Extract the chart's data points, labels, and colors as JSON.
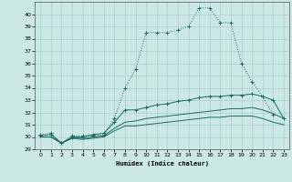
{
  "title": "",
  "xlabel": "Humidex (Indice chaleur)",
  "bg_color": "#cce8e4",
  "grid_color": "#aacfcb",
  "line_color": "#1a6b60",
  "x": [
    0,
    1,
    2,
    3,
    4,
    5,
    6,
    7,
    8,
    9,
    10,
    11,
    12,
    13,
    14,
    15,
    16,
    17,
    18,
    19,
    20,
    21,
    22,
    23
  ],
  "series1": [
    30.2,
    30.3,
    29.5,
    30.1,
    30.1,
    30.1,
    30.2,
    31.5,
    34.0,
    35.5,
    38.5,
    38.5,
    38.5,
    38.7,
    39.0,
    40.5,
    40.5,
    39.3,
    39.3,
    36.0,
    34.5,
    33.3,
    31.8,
    null
  ],
  "series2": [
    30.1,
    30.2,
    29.5,
    30.0,
    30.0,
    30.2,
    30.3,
    31.2,
    32.2,
    32.2,
    32.4,
    32.6,
    32.7,
    32.9,
    33.0,
    33.2,
    33.3,
    33.3,
    33.4,
    33.4,
    33.5,
    33.3,
    33.0,
    31.5
  ],
  "series3": [
    30.0,
    30.0,
    29.5,
    29.9,
    29.9,
    30.0,
    30.1,
    30.7,
    31.2,
    31.3,
    31.5,
    31.6,
    31.7,
    31.8,
    31.9,
    32.0,
    32.1,
    32.2,
    32.3,
    32.3,
    32.4,
    32.2,
    31.9,
    31.5
  ],
  "series4": [
    30.0,
    30.0,
    29.5,
    29.9,
    29.8,
    29.9,
    30.0,
    30.5,
    30.9,
    30.9,
    31.0,
    31.1,
    31.2,
    31.3,
    31.4,
    31.5,
    31.6,
    31.6,
    31.7,
    31.7,
    31.7,
    31.5,
    31.2,
    31.0
  ],
  "ylim": [
    29,
    41
  ],
  "xlim": [
    -0.5,
    23.5
  ],
  "yticks": [
    29,
    30,
    31,
    32,
    33,
    34,
    35,
    36,
    37,
    38,
    39,
    40
  ],
  "xticks": [
    0,
    1,
    2,
    3,
    4,
    5,
    6,
    7,
    8,
    9,
    10,
    11,
    12,
    13,
    14,
    15,
    16,
    17,
    18,
    19,
    20,
    21,
    22,
    23
  ]
}
